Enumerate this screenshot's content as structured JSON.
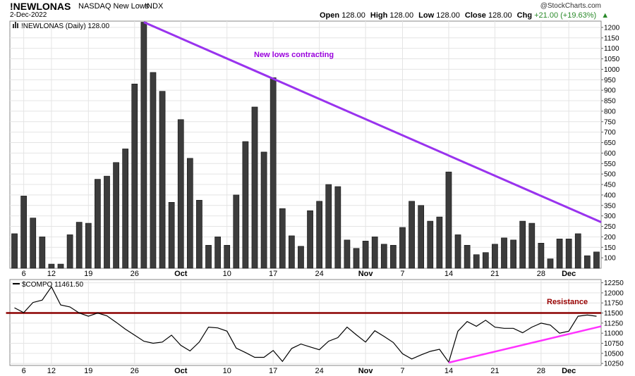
{
  "header": {
    "symbol": "!NEWLONAS",
    "description": "NASDAQ New Lows",
    "exchange": "INDX",
    "date": "2-Dec-2022",
    "credit": "@StockCharts.com",
    "open_label": "Open",
    "open": "128.00",
    "high_label": "High",
    "high": "128.00",
    "low_label": "Low",
    "low": "128.00",
    "close_label": "Close",
    "close": "128.00",
    "chg_label": "Chg",
    "chg": "+21.00 (+19.63%)",
    "chg_arrow": "▲"
  },
  "chart_data": [
    {
      "type": "bar",
      "legend": "!NEWLONAS (Daily) 128.00",
      "ylim": [
        50,
        1230
      ],
      "yticks": [
        100,
        150,
        200,
        250,
        300,
        350,
        400,
        450,
        500,
        550,
        600,
        650,
        700,
        750,
        800,
        850,
        900,
        950,
        1000,
        1050,
        1100,
        1150,
        1200
      ],
      "x_ticks": [
        {
          "label": "6",
          "index": 1
        },
        {
          "label": "12",
          "index": 4
        },
        {
          "label": "19",
          "index": 8
        },
        {
          "label": "26",
          "index": 13
        },
        {
          "label": "Oct",
          "index": 18,
          "bold": true
        },
        {
          "label": "10",
          "index": 23
        },
        {
          "label": "17",
          "index": 28
        },
        {
          "label": "24",
          "index": 33
        },
        {
          "label": "Nov",
          "index": 38,
          "bold": true
        },
        {
          "label": "7",
          "index": 42
        },
        {
          "label": "14",
          "index": 47
        },
        {
          "label": "21",
          "index": 52
        },
        {
          "label": "28",
          "index": 57
        },
        {
          "label": "Dec",
          "index": 60,
          "bold": true
        }
      ],
      "values": [
        215,
        395,
        290,
        200,
        70,
        70,
        210,
        270,
        265,
        475,
        490,
        555,
        620,
        930,
        1225,
        985,
        895,
        365,
        760,
        575,
        375,
        160,
        200,
        160,
        400,
        655,
        820,
        605,
        960,
        335,
        205,
        155,
        325,
        370,
        450,
        440,
        185,
        145,
        180,
        200,
        165,
        160,
        245,
        370,
        350,
        275,
        295,
        510,
        210,
        160,
        115,
        125,
        165,
        195,
        185,
        275,
        265,
        170,
        95,
        190,
        190,
        215,
        110,
        128
      ],
      "annotations": [
        {
          "text": "New lows contracting",
          "color": "#9900dd"
        }
      ],
      "trendline": {
        "color": "#9933ee",
        "from": {
          "index": 14,
          "value": 1225
        },
        "to": {
          "index": 63.5,
          "value": 270
        }
      }
    },
    {
      "type": "line",
      "legend": "$COMPO 11461.50",
      "ylim": [
        10200,
        12330
      ],
      "yticks": [
        10250,
        10500,
        10750,
        11000,
        11250,
        11500,
        11750,
        12000,
        12250
      ],
      "x_ticks_same_as_above": true,
      "values": [
        11630,
        11510,
        11760,
        11820,
        12150,
        11700,
        11650,
        11500,
        11420,
        11500,
        11430,
        11270,
        11100,
        10950,
        10800,
        10750,
        10780,
        10950,
        10700,
        10560,
        10780,
        11150,
        11130,
        11050,
        10630,
        10520,
        10400,
        10400,
        10570,
        10300,
        10620,
        10730,
        10660,
        10590,
        10800,
        10890,
        11150,
        10960,
        10780,
        11060,
        10920,
        10770,
        10490,
        10360,
        10460,
        10550,
        10600,
        10280,
        11050,
        11290,
        11170,
        11320,
        11150,
        11120,
        11120,
        11010,
        11150,
        11250,
        11200,
        11000,
        11050,
        11420,
        11450,
        11420
      ],
      "annotations": [
        {
          "text": "Resistance",
          "color": "#990000"
        }
      ],
      "resistance": {
        "color": "#8b0000",
        "value": 11500,
        "from_index": 0,
        "to_index": 63.5
      },
      "support": {
        "color": "#ff33ff",
        "from": {
          "index": 47,
          "value": 10270
        },
        "to": {
          "index": 63.5,
          "value": 11170
        }
      }
    }
  ]
}
